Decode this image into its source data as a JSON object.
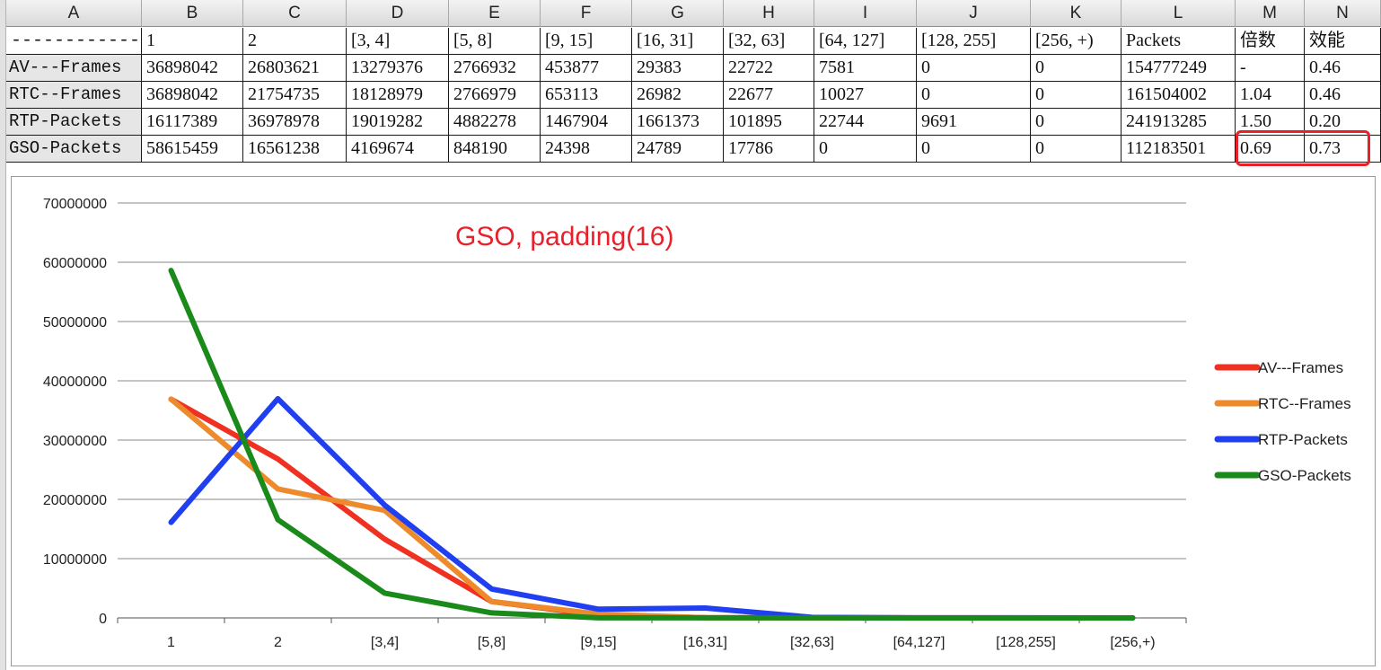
{
  "sheet": {
    "columns": [
      "A",
      "B",
      "C",
      "D",
      "E",
      "F",
      "G",
      "H",
      "I",
      "J",
      "K",
      "L",
      "M",
      "N"
    ],
    "header_row": [
      "------------",
      "1",
      "2",
      "[3, 4]",
      "[5, 8]",
      "[9, 15]",
      "[16, 31]",
      "[32, 63]",
      "[64, 127]",
      "[128, 255]",
      "[256, +)",
      "Packets",
      "倍数",
      "效能"
    ],
    "rows": [
      [
        "AV---Frames",
        "36898042",
        "26803621",
        "13279376",
        "2766932",
        "453877",
        "29383",
        "22722",
        "7581",
        "0",
        "0",
        "154777249",
        "-",
        "0.46"
      ],
      [
        "RTC--Frames",
        "36898042",
        "21754735",
        "18128979",
        "2766979",
        "653113",
        "26982",
        "22677",
        "10027",
        "0",
        "0",
        "161504002",
        "1.04",
        "0.46"
      ],
      [
        "RTP-Packets",
        "16117389",
        "36978978",
        "19019282",
        "4882278",
        "1467904",
        "1661373",
        "101895",
        "22744",
        "9691",
        "0",
        "241913285",
        "1.50",
        "0.20"
      ],
      [
        "GSO-Packets",
        "58615459",
        "16561238",
        "4169674",
        "848190",
        "24398",
        "24789",
        "17786",
        "0",
        "0",
        "0",
        "112183501",
        "0.69",
        "0.73"
      ]
    ]
  },
  "chart_data": {
    "type": "line",
    "title": "GSO, padding(16)",
    "categories": [
      "1",
      "2",
      "[3,4]",
      "[5,8]",
      "[9,15]",
      "[16,31]",
      "[32,63]",
      "[64,127]",
      "[128,255]",
      "[256,+)"
    ],
    "y_ticks": [
      "0",
      "10000000",
      "20000000",
      "30000000",
      "40000000",
      "50000000",
      "60000000",
      "70000000"
    ],
    "ylim": [
      0,
      70000000
    ],
    "grid": true,
    "legend_position": "right",
    "series": [
      {
        "name": "AV---Frames",
        "color": "#f03020",
        "values": [
          36898042,
          26803621,
          13279376,
          2766932,
          453877,
          29383,
          22722,
          7581,
          0,
          0
        ]
      },
      {
        "name": "RTC--Frames",
        "color": "#ec8a2c",
        "values": [
          36898042,
          21754735,
          18128979,
          2766979,
          653113,
          26982,
          22677,
          10027,
          0,
          0
        ]
      },
      {
        "name": "RTP-Packets",
        "color": "#1f3ff0",
        "values": [
          16117389,
          36978978,
          19019282,
          4882278,
          1467904,
          1661373,
          101895,
          22744,
          9691,
          0
        ]
      },
      {
        "name": "GSO-Packets",
        "color": "#1a8a1a",
        "values": [
          58615459,
          16561238,
          4169674,
          848190,
          24398,
          24789,
          17786,
          0,
          0,
          0
        ]
      }
    ]
  },
  "colors": {
    "title": "#e8202a",
    "highlight": "#e8202a",
    "grid": "#888888"
  }
}
